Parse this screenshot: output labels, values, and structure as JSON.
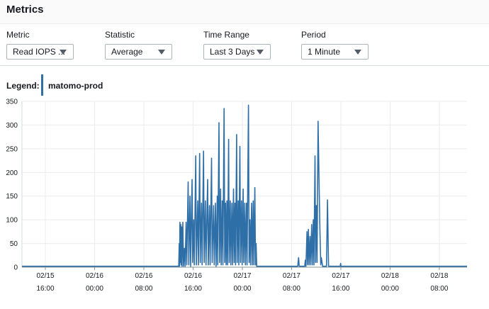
{
  "header": {
    "title": "Metrics"
  },
  "controls": {
    "metric": {
      "label": "Metric",
      "value": "Read IOPS ..."
    },
    "statistic": {
      "label": "Statistic",
      "value": "Average"
    },
    "time_range": {
      "label": "Time Range",
      "value": "Last 3 Days"
    },
    "period": {
      "label": "Period",
      "value": "1 Minute"
    }
  },
  "legend": {
    "label": "Legend:",
    "series": "matomo-prod",
    "color": "#2f6fa8"
  },
  "chart_data": {
    "type": "line",
    "title": "",
    "xlabel": "",
    "ylabel": "",
    "ylim": [
      0,
      350
    ],
    "yticks": [
      0,
      50,
      100,
      150,
      200,
      250,
      300,
      350
    ],
    "xlim": [
      "02/15 12:12",
      "02/18 12:30"
    ],
    "xticks": [
      {
        "t": "02/15 16:00",
        "date": "02/15",
        "time": "16:00"
      },
      {
        "t": "02/16 00:00",
        "date": "02/16",
        "time": "00:00"
      },
      {
        "t": "02/16 08:00",
        "date": "02/16",
        "time": "08:00"
      },
      {
        "t": "02/16 16:00",
        "date": "02/16",
        "time": "16:00"
      },
      {
        "t": "02/17 00:00",
        "date": "02/17",
        "time": "00:00"
      },
      {
        "t": "02/17 08:00",
        "date": "02/17",
        "time": "08:00"
      },
      {
        "t": "02/17 16:00",
        "date": "02/17",
        "time": "16:00"
      },
      {
        "t": "02/18 00:00",
        "date": "02/18",
        "time": "00:00"
      },
      {
        "t": "02/18 08:00",
        "date": "02/18",
        "time": "08:00"
      }
    ],
    "grid": true,
    "series": [
      {
        "name": "matomo-prod",
        "color": "#2f6fa8",
        "points": [
          [
            "02/15 12:12",
            2
          ],
          [
            "02/16 13:40",
            2
          ],
          [
            "02/16 13:45",
            50
          ],
          [
            "02/16 13:48",
            2
          ],
          [
            "02/16 13:52",
            95
          ],
          [
            "02/16 13:56",
            10
          ],
          [
            "02/16 14:00",
            90
          ],
          [
            "02/16 14:04",
            5
          ],
          [
            "02/16 14:08",
            85
          ],
          [
            "02/16 14:12",
            2
          ],
          [
            "02/16 14:20",
            95
          ],
          [
            "02/16 14:26",
            2
          ],
          [
            "02/16 14:36",
            40
          ],
          [
            "02/16 14:42",
            2
          ],
          [
            "02/16 14:52",
            95
          ],
          [
            "02/16 14:58",
            5
          ],
          [
            "02/16 15:12",
            180
          ],
          [
            "02/16 15:18",
            5
          ],
          [
            "02/16 15:30",
            150
          ],
          [
            "02/16 15:36",
            2
          ],
          [
            "02/16 15:50",
            185
          ],
          [
            "02/16 15:56",
            10
          ],
          [
            "02/16 16:06",
            100
          ],
          [
            "02/16 16:12",
            5
          ],
          [
            "02/16 16:26",
            235
          ],
          [
            "02/16 16:32",
            5
          ],
          [
            "02/16 16:45",
            140
          ],
          [
            "02/16 16:52",
            5
          ],
          [
            "02/16 17:04",
            240
          ],
          [
            "02/16 17:10",
            10
          ],
          [
            "02/16 17:22",
            135
          ],
          [
            "02/16 17:28",
            5
          ],
          [
            "02/16 17:42",
            245
          ],
          [
            "02/16 17:48",
            10
          ],
          [
            "02/16 18:00",
            140
          ],
          [
            "02/16 18:06",
            5
          ],
          [
            "02/16 18:22",
            185
          ],
          [
            "02/16 18:28",
            5
          ],
          [
            "02/16 18:40",
            130
          ],
          [
            "02/16 18:46",
            5
          ],
          [
            "02/16 19:00",
            230
          ],
          [
            "02/16 19:06",
            10
          ],
          [
            "02/16 19:20",
            130
          ],
          [
            "02/16 19:26",
            5
          ],
          [
            "02/16 19:38",
            135
          ],
          [
            "02/16 19:44",
            2
          ],
          [
            "02/16 19:56",
            150
          ],
          [
            "02/16 20:00",
            5
          ],
          [
            "02/16 20:12",
            305
          ],
          [
            "02/16 20:18",
            10
          ],
          [
            "02/16 20:28",
            165
          ],
          [
            "02/16 20:34",
            5
          ],
          [
            "02/16 20:44",
            140
          ],
          [
            "02/16 20:50",
            5
          ],
          [
            "02/16 21:02",
            335
          ],
          [
            "02/16 21:08",
            10
          ],
          [
            "02/16 21:16",
            135
          ],
          [
            "02/16 21:22",
            5
          ],
          [
            "02/16 21:30",
            140
          ],
          [
            "02/16 21:36",
            5
          ],
          [
            "02/16 21:46",
            270
          ],
          [
            "02/16 21:52",
            10
          ],
          [
            "02/16 22:02",
            140
          ],
          [
            "02/16 22:08",
            5
          ],
          [
            "02/16 22:18",
            135
          ],
          [
            "02/16 22:24",
            5
          ],
          [
            "02/16 22:34",
            165
          ],
          [
            "02/16 22:40",
            10
          ],
          [
            "02/16 22:48",
            135
          ],
          [
            "02/16 22:54",
            5
          ],
          [
            "02/16 23:04",
            280
          ],
          [
            "02/16 23:10",
            10
          ],
          [
            "02/16 23:20",
            140
          ],
          [
            "02/16 23:26",
            5
          ],
          [
            "02/16 23:36",
            255
          ],
          [
            "02/16 23:42",
            10
          ],
          [
            "02/16 23:52",
            140
          ],
          [
            "02/16 23:58",
            5
          ],
          [
            "02/17 00:08",
            165
          ],
          [
            "02/17 00:14",
            10
          ],
          [
            "02/17 00:24",
            135
          ],
          [
            "02/17 00:30",
            5
          ],
          [
            "02/17 00:40",
            135
          ],
          [
            "02/17 00:46",
            5
          ],
          [
            "02/17 01:00",
            342
          ],
          [
            "02/17 01:06",
            10
          ],
          [
            "02/17 01:14",
            100
          ],
          [
            "02/17 01:20",
            5
          ],
          [
            "02/17 01:30",
            135
          ],
          [
            "02/17 01:36",
            5
          ],
          [
            "02/17 01:46",
            140
          ],
          [
            "02/17 01:52",
            5
          ],
          [
            "02/17 02:02",
            168
          ],
          [
            "02/17 02:08",
            5
          ],
          [
            "02/17 02:14",
            50
          ],
          [
            "02/17 02:20",
            2
          ],
          [
            "02/17 09:00",
            2
          ],
          [
            "02/17 09:08",
            20
          ],
          [
            "02/17 09:14",
            2
          ],
          [
            "02/17 10:08",
            2
          ],
          [
            "02/17 10:14",
            15
          ],
          [
            "02/17 10:20",
            2
          ],
          [
            "02/17 10:30",
            75
          ],
          [
            "02/17 10:36",
            5
          ],
          [
            "02/17 10:44",
            80
          ],
          [
            "02/17 10:50",
            5
          ],
          [
            "02/17 11:00",
            65
          ],
          [
            "02/17 11:06",
            5
          ],
          [
            "02/17 11:16",
            90
          ],
          [
            "02/17 11:22",
            5
          ],
          [
            "02/17 11:32",
            100
          ],
          [
            "02/17 11:38",
            5
          ],
          [
            "02/17 11:48",
            235
          ],
          [
            "02/17 11:54",
            10
          ],
          [
            "02/17 12:02",
            130
          ],
          [
            "02/17 12:08",
            10
          ],
          [
            "02/17 12:18",
            308
          ],
          [
            "02/17 12:26",
            200
          ],
          [
            "02/17 12:36",
            80
          ],
          [
            "02/17 12:44",
            5
          ],
          [
            "02/17 12:50",
            20
          ],
          [
            "02/17 13:02",
            2
          ],
          [
            "02/17 13:40",
            2
          ],
          [
            "02/17 13:50",
            142
          ],
          [
            "02/17 14:00",
            2
          ],
          [
            "02/17 15:54",
            2
          ],
          [
            "02/17 15:58",
            8
          ],
          [
            "02/17 16:02",
            2
          ],
          [
            "02/18 12:30",
            2
          ]
        ]
      }
    ]
  }
}
